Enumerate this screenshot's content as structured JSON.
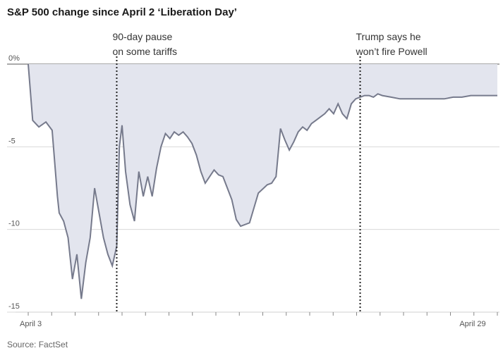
{
  "title": "S&P 500 change since April 2 ‘Liberation Day’",
  "source": "Source: FactSet",
  "chart_data": {
    "type": "area",
    "title": "S&P 500 change since April 2 ‘Liberation Day’",
    "xlabel": "",
    "ylabel": "",
    "x_tick_labels": [
      "April 3",
      "April 29"
    ],
    "y_tick_labels": [
      "0%",
      "-5",
      "-10",
      "-15"
    ],
    "y_ticks": [
      0,
      -5,
      -10,
      -15
    ],
    "ylim": [
      -15,
      0
    ],
    "grid": true,
    "line_color": "#767a8c",
    "fill_color": "#e3e5ee",
    "annotations": [
      {
        "x": 1.0,
        "lines": [
          "90-day pause",
          "on some tariffs"
        ]
      },
      {
        "x": 3.75,
        "lines": [
          "Trump says he",
          "won’t fire Powell"
        ]
      }
    ],
    "x": [
      0,
      0.05,
      0.12,
      0.2,
      0.27,
      0.33,
      0.35,
      0.4,
      0.45,
      0.5,
      0.55,
      0.6,
      0.65,
      0.7,
      0.75,
      0.8,
      0.85,
      0.9,
      0.95,
      1.0,
      1.03,
      1.06,
      1.1,
      1.15,
      1.2,
      1.25,
      1.3,
      1.35,
      1.4,
      1.45,
      1.5,
      1.55,
      1.6,
      1.65,
      1.7,
      1.75,
      1.8,
      1.85,
      1.9,
      1.95,
      2.0,
      2.05,
      2.1,
      2.15,
      2.2,
      2.25,
      2.3,
      2.35,
      2.4,
      2.5,
      2.6,
      2.7,
      2.75,
      2.8,
      2.85,
      2.9,
      2.95,
      3.0,
      3.05,
      3.1,
      3.15,
      3.2,
      3.25,
      3.3,
      3.35,
      3.4,
      3.45,
      3.5,
      3.55,
      3.6,
      3.65,
      3.7,
      3.75,
      3.8,
      3.85,
      3.9,
      3.95,
      4.0,
      4.1,
      4.2,
      4.3,
      4.4,
      4.5,
      4.6,
      4.7,
      4.8,
      4.9,
      5.0,
      5.1,
      5.2,
      5.3
    ],
    "y": [
      0,
      -3.4,
      -3.8,
      -3.5,
      -4.0,
      -8.0,
      -9.0,
      -9.5,
      -10.5,
      -13.0,
      -11.5,
      -14.2,
      -12.0,
      -10.5,
      -7.5,
      -9.0,
      -10.5,
      -11.5,
      -12.2,
      -11.0,
      -5.0,
      -3.7,
      -6.5,
      -8.5,
      -9.5,
      -6.5,
      -8.0,
      -6.8,
      -8.0,
      -6.3,
      -5.0,
      -4.2,
      -4.5,
      -4.1,
      -4.3,
      -4.1,
      -4.4,
      -4.8,
      -5.5,
      -6.5,
      -7.2,
      -6.8,
      -6.4,
      -6.7,
      -6.8,
      -7.5,
      -8.2,
      -9.4,
      -9.8,
      -9.6,
      -7.8,
      -7.3,
      -7.2,
      -6.8,
      -3.9,
      -4.6,
      -5.2,
      -4.7,
      -4.1,
      -3.8,
      -4.0,
      -3.6,
      -3.4,
      -3.2,
      -3.0,
      -2.7,
      -3.0,
      -2.4,
      -3.0,
      -3.3,
      -2.4,
      -2.1,
      -2.0,
      -1.9,
      -1.9,
      -2.0,
      -1.8,
      -1.9,
      -2.0,
      -2.1,
      -2.1,
      -2.1,
      -2.1,
      -2.1,
      -2.1,
      -2.0,
      -2.0,
      -1.9,
      -1.9,
      -1.9,
      -1.9
    ]
  }
}
